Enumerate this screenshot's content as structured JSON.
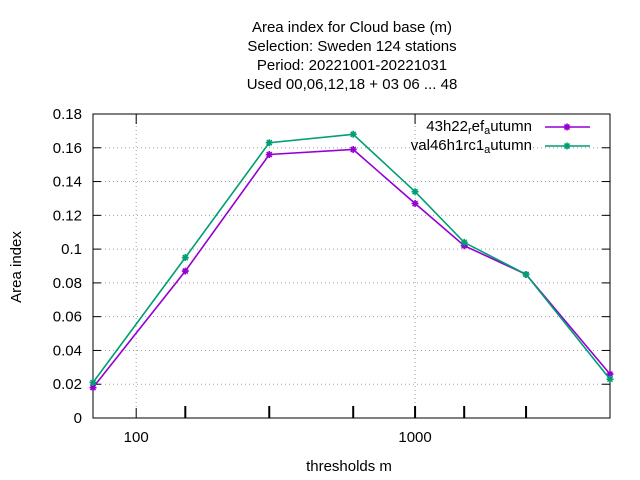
{
  "chart_data": {
    "type": "line",
    "title_lines": [
      "Area index  for Cloud base (m)",
      "Selection: Sweden    124 stations",
      "Period: 20221001-20221031",
      "Used  00,06,12,18  + 03 06 ... 48"
    ],
    "xlabel": "thresholds m",
    "ylabel": "Area index",
    "x_scale": "log",
    "xlim": [
      70,
      5000
    ],
    "ylim": [
      0,
      0.18
    ],
    "x_tick_labels": [
      "100",
      "1000"
    ],
    "y_tick_labels": [
      "0",
      "0.02",
      "0.04",
      "0.06",
      "0.08",
      "0.1",
      "0.12",
      "0.14",
      "0.16",
      "0.18"
    ],
    "grid": true,
    "legend_position": "top-right",
    "x": [
      70,
      150,
      300,
      600,
      1000,
      1500,
      2500,
      5000
    ],
    "series": [
      {
        "name": "43h22_ref_autumn",
        "legend_parts": [
          "43h22",
          "r",
          "ef",
          "a",
          "utumn"
        ],
        "color": "#9400d3",
        "values": [
          0.018,
          0.087,
          0.156,
          0.159,
          0.127,
          0.102,
          0.085,
          0.026
        ]
      },
      {
        "name": "val46h1rc1_autumn",
        "legend_parts": [
          "val46h1rc1",
          "",
          "",
          "a",
          "utumn"
        ],
        "color": "#009e73",
        "values": [
          0.021,
          0.095,
          0.163,
          0.168,
          0.134,
          0.104,
          0.085,
          0.023
        ]
      }
    ]
  }
}
